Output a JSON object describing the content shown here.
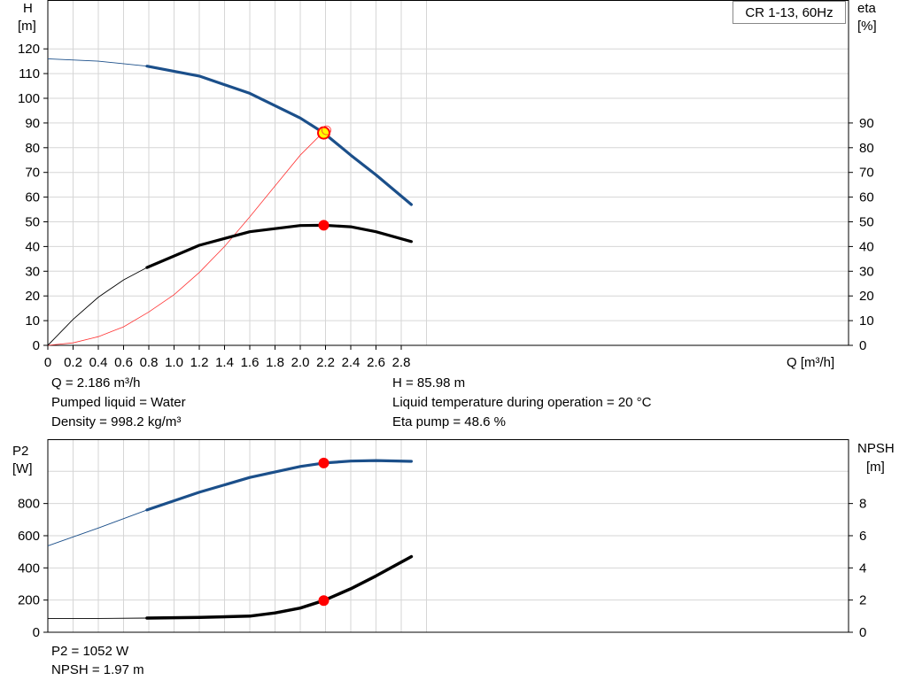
{
  "legend_label": "CR 1-13, 60Hz",
  "info_top": {
    "q": "Q = 2.186 m³/h",
    "liquid": "Pumped liquid = Water",
    "density": "Density = 998.2 kg/m³",
    "h": "H = 85.98 m",
    "temperature": "Liquid temperature during operation = 20 °C",
    "eta": "Eta pump = 48.6 %"
  },
  "info_bottom": {
    "p2": "P2 = 1052 W",
    "npsh": "NPSH = 1.97 m"
  },
  "colors": {
    "head": "#1b4f8a",
    "eta": "#ff3333",
    "p2": "#1b4f8a",
    "npsh": "#000000",
    "marker": "#ff0000",
    "marker_fill": "#ffff00"
  },
  "chart_data": [
    {
      "type": "line",
      "xlabel": "Q [m³/h]",
      "ylabel_left": [
        "H",
        "[m]"
      ],
      "ylabel_right": [
        "eta",
        "[%]"
      ],
      "xlim": [
        0,
        3.1
      ],
      "ylim_left": [
        0,
        128
      ],
      "ylim_right": [
        0,
        100
      ],
      "x_ticks": [
        "0",
        "0.2",
        "0.4",
        "0.6",
        "0.8",
        "1.0",
        "1.2",
        "1.4",
        "1.6",
        "1.8",
        "2.0",
        "2.2",
        "2.4",
        "2.6",
        "2.8"
      ],
      "y_ticks_left": [
        0,
        10,
        20,
        30,
        40,
        50,
        60,
        70,
        80,
        90,
        100,
        110,
        120
      ],
      "y_ticks_right": [
        0,
        10,
        20,
        30,
        40,
        50,
        60,
        70,
        80,
        90
      ],
      "grid": true,
      "series": [
        {
          "name": "H",
          "axis": "left",
          "x": [
            0,
            0.4,
            0.785,
            1.2,
            1.6,
            2.0,
            2.186,
            2.4,
            2.6,
            2.88
          ],
          "y": [
            116,
            115,
            113,
            109,
            102,
            92,
            86,
            77,
            69,
            57
          ],
          "solid_from": 0.785
        },
        {
          "name": "eta",
          "axis": "right",
          "x": [
            0,
            0.2,
            0.4,
            0.6,
            0.8,
            1.0,
            1.2,
            1.4,
            1.6,
            1.8,
            2.0,
            2.186
          ],
          "y": [
            0,
            1,
            3.5,
            7.5,
            13.5,
            20.5,
            29.5,
            40,
            52,
            64.5,
            77,
            86.5
          ],
          "thin": true
        },
        {
          "name": "eta pump",
          "axis": "left",
          "x": [
            0,
            0.2,
            0.4,
            0.6,
            0.785,
            1.2,
            1.6,
            2.0,
            2.186,
            2.4,
            2.6,
            2.88
          ],
          "y": [
            0,
            10.5,
            19.5,
            26.5,
            31.5,
            40.5,
            46,
            48.5,
            48.6,
            48,
            46,
            42
          ],
          "solid_from": 0.785
        }
      ],
      "operating_point": {
        "q": 2.186,
        "h": 85.98,
        "eta": 48.6
      }
    },
    {
      "type": "line",
      "xlabel": "",
      "ylabel_left": [
        "P2",
        "[W]"
      ],
      "ylabel_right": [
        "NPSH",
        "[m]"
      ],
      "xlim": [
        0,
        3.1
      ],
      "ylim_left": [
        0,
        1100
      ],
      "ylim_right": [
        0,
        11
      ],
      "y_ticks_left": [
        0,
        200,
        400,
        600,
        800
      ],
      "y_ticks_right": [
        0,
        2,
        4,
        6,
        8
      ],
      "grid": true,
      "series": [
        {
          "name": "P2",
          "axis": "left",
          "x": [
            0,
            0.4,
            0.785,
            1.2,
            1.6,
            2.0,
            2.186,
            2.4,
            2.6,
            2.88
          ],
          "y": [
            537,
            648,
            760,
            870,
            962,
            1030,
            1052,
            1064,
            1067,
            1062
          ],
          "solid_from": 0.785
        },
        {
          "name": "NPSH",
          "axis": "right",
          "x": [
            0,
            0.4,
            0.785,
            1.2,
            1.6,
            1.8,
            2.0,
            2.186,
            2.4,
            2.6,
            2.88
          ],
          "y": [
            0.85,
            0.86,
            0.88,
            0.92,
            1.0,
            1.2,
            1.5,
            1.97,
            2.7,
            3.5,
            4.7
          ],
          "solid_from": 0.785
        }
      ],
      "operating_point": {
        "q": 2.186,
        "p2": 1052,
        "npsh": 1.97
      }
    }
  ]
}
